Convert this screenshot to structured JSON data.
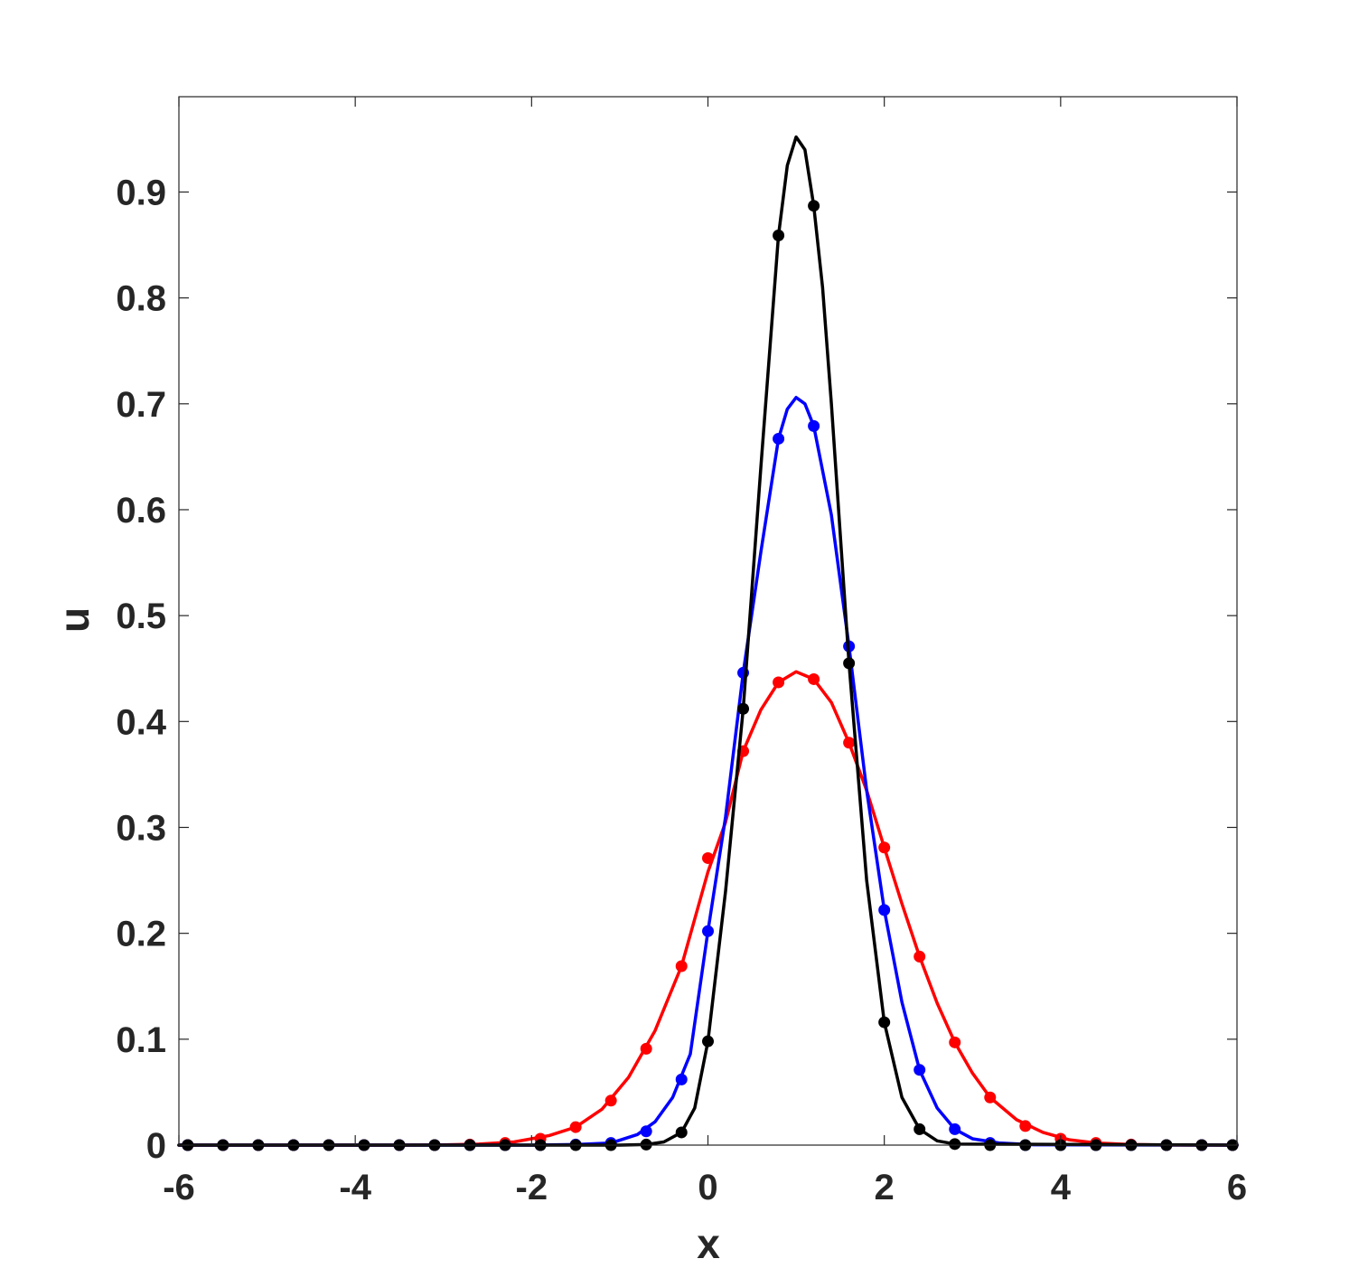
{
  "chart_data": {
    "type": "line",
    "xlabel": "x",
    "ylabel": "u",
    "xlim": [
      -6,
      6
    ],
    "ylim": [
      0,
      0.99
    ],
    "xticks": [
      -6,
      -4,
      -2,
      0,
      2,
      4,
      6
    ],
    "xtick_labels": [
      "-6",
      "-4",
      "-2",
      "0",
      "2",
      "4",
      "6"
    ],
    "yticks": [
      0,
      0.1,
      0.2,
      0.3,
      0.4,
      0.5,
      0.6,
      0.7,
      0.8,
      0.9
    ],
    "ytick_labels": [
      "0",
      "0.1",
      "0.2",
      "0.3",
      "0.4",
      "0.5",
      "0.6",
      "0.7",
      "0.8",
      "0.9"
    ],
    "grid": false,
    "legend": "none",
    "series": [
      {
        "color": "#ff0000",
        "marker_x": [
          -5.9,
          -5.5,
          -5.1,
          -4.7,
          -4.3,
          -3.9,
          -3.5,
          -3.1,
          -2.7,
          -2.3,
          -1.9,
          -1.5,
          -1.1,
          -0.7,
          -0.3,
          0.0,
          0.4,
          0.8,
          1.2,
          1.6,
          2.0,
          2.4,
          2.8,
          3.2,
          3.6,
          4.0,
          4.4,
          4.8,
          5.2,
          5.6,
          5.95
        ],
        "marker_y": [
          0,
          0,
          0,
          0,
          0,
          0,
          0,
          0,
          0.0005,
          0.002,
          0.006,
          0.017,
          0.042,
          0.091,
          0.169,
          0.271,
          0.372,
          0.437,
          0.44,
          0.38,
          0.281,
          0.178,
          0.097,
          0.045,
          0.018,
          0.006,
          0.002,
          0.0005,
          0,
          0,
          0
        ],
        "line_x": [
          -6,
          -5,
          -4,
          -3.5,
          -3,
          -2.6,
          -2.2,
          -1.8,
          -1.5,
          -1.2,
          -0.9,
          -0.6,
          -0.3,
          0.0,
          0.2,
          0.4,
          0.6,
          0.8,
          1.0,
          1.2,
          1.4,
          1.6,
          1.8,
          2.0,
          2.2,
          2.4,
          2.6,
          2.8,
          3.0,
          3.2,
          3.5,
          3.8,
          4.1,
          4.4,
          4.8,
          5.2,
          6
        ],
        "line_y": [
          0,
          0,
          0,
          0,
          0.0002,
          0.001,
          0.003,
          0.009,
          0.017,
          0.034,
          0.064,
          0.108,
          0.169,
          0.258,
          0.305,
          0.372,
          0.411,
          0.437,
          0.447,
          0.44,
          0.418,
          0.38,
          0.335,
          0.281,
          0.228,
          0.178,
          0.134,
          0.097,
          0.068,
          0.045,
          0.024,
          0.012,
          0.005,
          0.002,
          0.0005,
          0.0001,
          0
        ]
      },
      {
        "color": "#0000ff",
        "marker_x": [
          -5.9,
          -5.5,
          -5.1,
          -4.7,
          -4.3,
          -3.9,
          -3.5,
          -3.1,
          -2.7,
          -2.3,
          -1.9,
          -1.5,
          -1.1,
          -0.7,
          -0.3,
          0.0,
          0.4,
          0.8,
          1.2,
          1.6,
          2.0,
          2.4,
          2.8,
          3.2,
          3.6,
          4.0,
          4.4,
          4.8,
          5.2,
          5.6,
          5.95
        ],
        "marker_y": [
          0,
          0,
          0,
          0,
          0,
          0,
          0,
          0,
          0,
          0,
          0,
          0.0005,
          0.002,
          0.013,
          0.062,
          0.202,
          0.446,
          0.667,
          0.679,
          0.471,
          0.222,
          0.071,
          0.015,
          0.002,
          0,
          0,
          0,
          0,
          0,
          0,
          0
        ],
        "line_x": [
          -6,
          -2,
          -1.5,
          -1.1,
          -0.8,
          -0.6,
          -0.4,
          -0.2,
          0.0,
          0.2,
          0.4,
          0.6,
          0.8,
          0.9,
          1.0,
          1.1,
          1.2,
          1.4,
          1.6,
          1.8,
          2.0,
          2.2,
          2.4,
          2.6,
          2.8,
          3.0,
          3.3,
          3.7,
          6
        ],
        "line_y": [
          0,
          0,
          0.0005,
          0.002,
          0.01,
          0.022,
          0.045,
          0.086,
          0.202,
          0.31,
          0.446,
          0.56,
          0.667,
          0.695,
          0.706,
          0.7,
          0.679,
          0.595,
          0.471,
          0.335,
          0.222,
          0.135,
          0.071,
          0.035,
          0.015,
          0.006,
          0.002,
          0.0003,
          0
        ]
      },
      {
        "color": "#000000",
        "marker_x": [
          -5.9,
          -5.5,
          -5.1,
          -4.7,
          -4.3,
          -3.9,
          -3.5,
          -3.1,
          -2.7,
          -2.3,
          -1.9,
          -1.5,
          -1.1,
          -0.7,
          -0.3,
          0.0,
          0.4,
          0.8,
          1.2,
          1.6,
          2.0,
          2.4,
          2.8,
          3.2,
          3.6,
          4.0,
          4.4,
          4.8,
          5.2,
          5.6,
          5.95
        ],
        "marker_y": [
          0,
          0,
          0,
          0,
          0,
          0,
          0,
          0,
          0,
          0,
          0,
          0,
          0,
          0.0005,
          0.012,
          0.098,
          0.412,
          0.859,
          0.887,
          0.455,
          0.116,
          0.015,
          0.001,
          0,
          0,
          0,
          0,
          0,
          0,
          0,
          0
        ],
        "line_x": [
          -6,
          -1,
          -0.7,
          -0.5,
          -0.3,
          -0.15,
          0.0,
          0.2,
          0.4,
          0.6,
          0.8,
          0.9,
          1.0,
          1.1,
          1.2,
          1.3,
          1.4,
          1.6,
          1.8,
          2.0,
          2.2,
          2.4,
          2.6,
          2.8,
          6
        ],
        "line_y": [
          0,
          0,
          0.0005,
          0.003,
          0.012,
          0.035,
          0.098,
          0.24,
          0.412,
          0.64,
          0.859,
          0.925,
          0.952,
          0.94,
          0.887,
          0.81,
          0.7,
          0.455,
          0.25,
          0.116,
          0.045,
          0.015,
          0.004,
          0.001,
          0
        ]
      }
    ]
  }
}
